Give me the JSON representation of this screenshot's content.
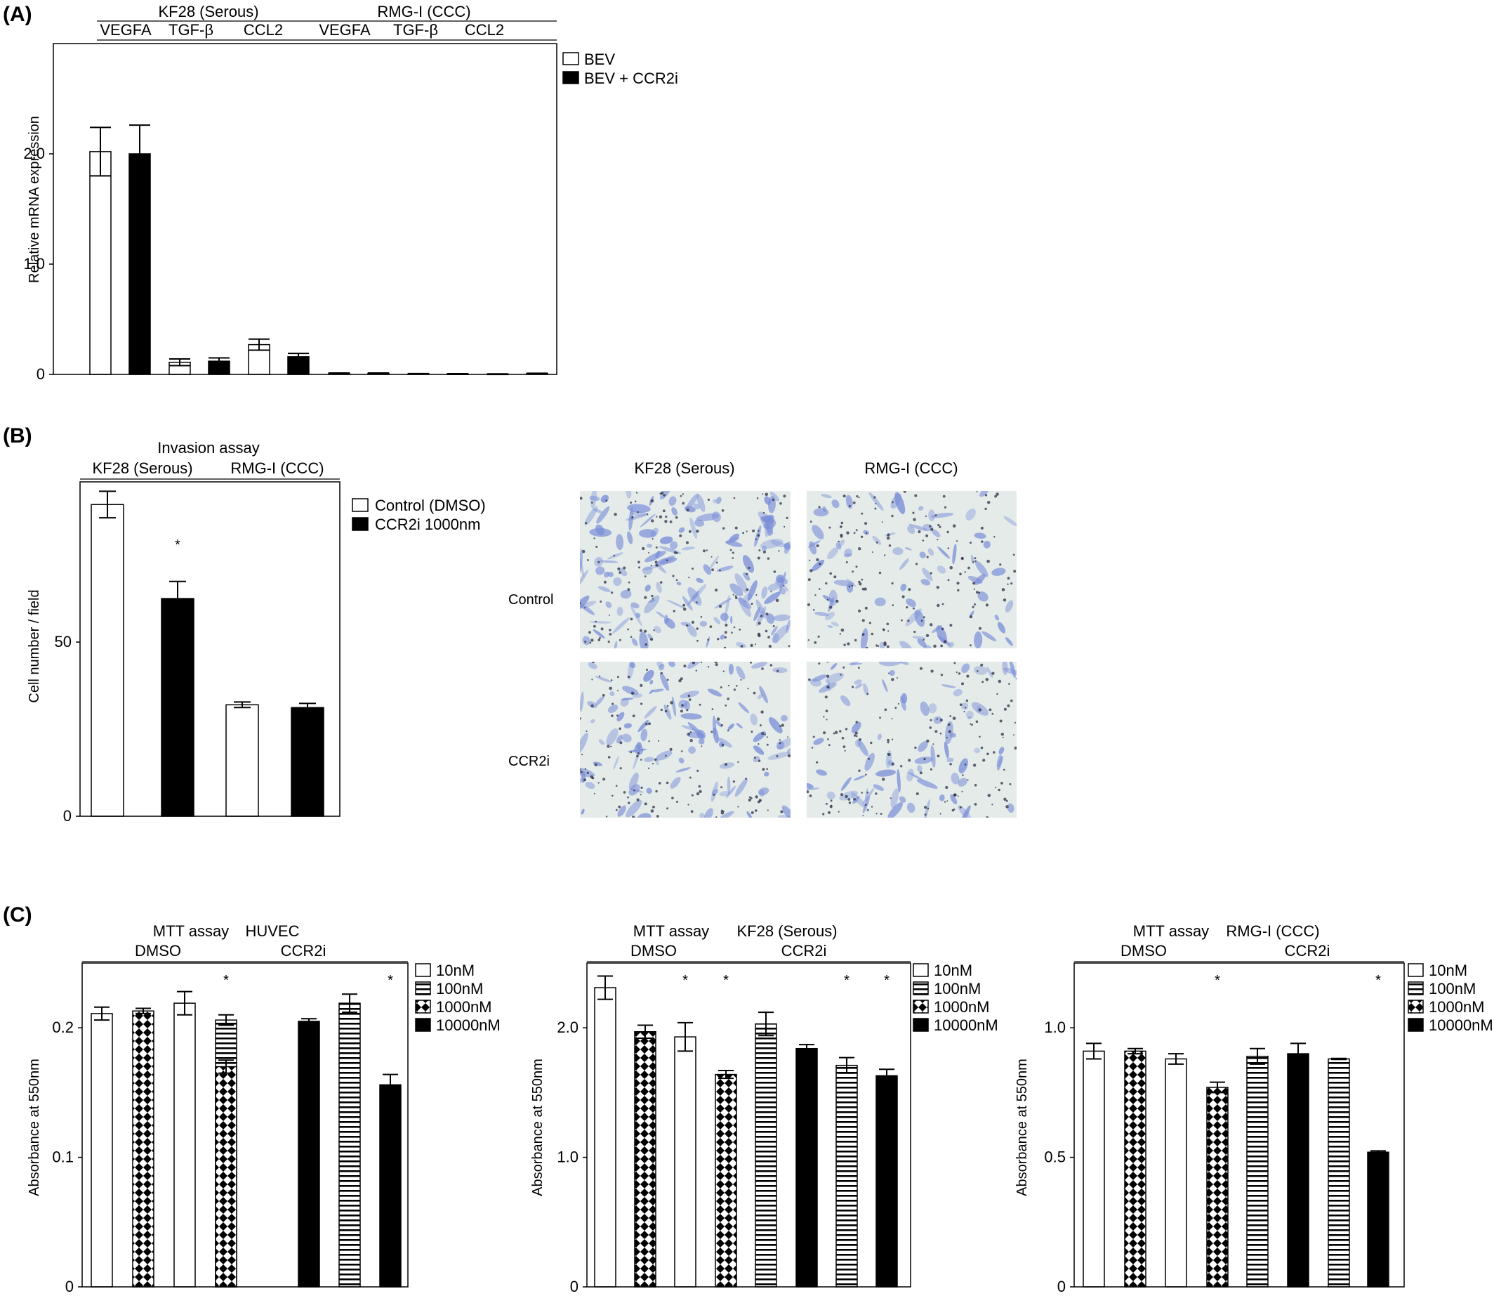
{
  "panels": {
    "A": {
      "letter": "(A)",
      "group_labels": [
        "KF28 (Serous)",
        "RMG-I (CCC)"
      ],
      "category_labels": [
        "VEGFA",
        "TGF-β",
        "CCL2",
        "VEGFA",
        "TGF-β",
        "CCL2"
      ],
      "ylabel": "Relative mRNA expression",
      "ticks": [
        "0",
        "1.0",
        "2.0"
      ],
      "legend": [
        "BEV",
        "BEV + CCR2i"
      ]
    },
    "B": {
      "letter": "(B)",
      "title": "Invasion assay",
      "group_labels": [
        "KF28 (Serous)",
        "RMG-I (CCC)"
      ],
      "ylabel": "Cell number / field",
      "ticks": [
        "0",
        "50"
      ],
      "legend": [
        "Control (DMSO)",
        "CCR2i 1000nm"
      ],
      "sig": "*",
      "image_grid": {
        "col_labels": [
          "KF28 (Serous)",
          "RMG-I (CCC)"
        ],
        "row_labels": [
          "Control",
          "CCR2i"
        ]
      }
    },
    "C": {
      "letter": "(C)",
      "subpanels": [
        {
          "title": "MTT assay",
          "cell": "HUVEC",
          "groups": [
            "DMSO",
            "CCR2i"
          ],
          "ylabel": "Absorbance at 550nm",
          "ticks": [
            "0",
            "0.1",
            "0.2"
          ],
          "legend": [
            "10nM",
            "100nM",
            "1000nM",
            "10000nM"
          ],
          "sig": "*"
        },
        {
          "title": "MTT assay",
          "cell": "KF28 (Serous)",
          "groups": [
            "DMSO",
            "CCR2i"
          ],
          "ylabel": "Absorbance at 550nm",
          "ticks": [
            "0",
            "1.0",
            "2.0"
          ],
          "legend": [
            "10nM",
            "100nM",
            "1000nM",
            "10000nM"
          ],
          "sig": "*"
        },
        {
          "title": "MTT assay",
          "cell": "RMG-I (CCC)",
          "groups": [
            "DMSO",
            "CCR2i"
          ],
          "ylabel": "Absorbance at 550nm",
          "ticks": [
            "0",
            "0.5",
            "1.0"
          ],
          "legend": [
            "10nM",
            "100nM",
            "1000nM",
            "10000nM"
          ],
          "sig": "*"
        }
      ]
    }
  },
  "chart_data": [
    {
      "type": "bar",
      "categories": [
        "VEGFA",
        "TGF-β",
        "CCL2",
        "VEGFA",
        "TGF-β",
        "CCL2"
      ],
      "groups": [
        "KF28 (Serous)",
        "KF28 (Serous)",
        "KF28 (Serous)",
        "RMG-I (CCC)",
        "RMG-I (CCC)",
        "RMG-I (CCC)"
      ],
      "series": [
        {
          "name": "BEV",
          "values": [
            2.02,
            0.11,
            0.27,
            0.01,
            0.005,
            0.003
          ],
          "errors": [
            0.22,
            0.03,
            0.05,
            0.003,
            0.002,
            0.002
          ]
        },
        {
          "name": "BEV + CCR2i",
          "values": [
            2.0,
            0.12,
            0.16,
            0.01,
            0.004,
            0.008
          ],
          "errors": [
            0.26,
            0.03,
            0.03,
            0.003,
            0.002,
            0.002
          ]
        }
      ],
      "ylabel": "Relative mRNA expression",
      "ylim": [
        0,
        3.0
      ],
      "legend_position": "right"
    },
    {
      "type": "bar",
      "title": "Invasion assay",
      "categories": [
        "KF28 (Serous)",
        "RMG-I (CCC)"
      ],
      "series": [
        {
          "name": "Control (DMSO)",
          "values": [
            89.5,
            32.0
          ],
          "errors": [
            3.8,
            0.8
          ]
        },
        {
          "name": "CCR2i 1000nm",
          "values": [
            62.5,
            31.2
          ],
          "errors": [
            4.9,
            1.2
          ]
        }
      ],
      "significant": [
        [
          false,
          false
        ],
        [
          true,
          false
        ]
      ],
      "ylabel": "Cell number / field",
      "ylim": [
        0,
        96
      ],
      "legend_position": "right"
    },
    {
      "type": "bar",
      "title": "MTT assay",
      "cell_line": "HUVEC",
      "categories": [
        "DMSO",
        "CCR2i"
      ],
      "series": [
        {
          "name": "10nM",
          "values": [
            0.211,
            0.219
          ],
          "errors": [
            0.005,
            0.009
          ]
        },
        {
          "name": "100nM",
          "values": [
            0.206,
            0.219
          ],
          "errors": [
            0.004,
            0.007
          ]
        },
        {
          "name": "1000nM",
          "values": [
            0.213,
            0.17
          ],
          "errors": [
            0.002,
            0.005
          ]
        },
        {
          "name": "10000nM",
          "values": [
            0.205,
            0.156
          ],
          "errors": [
            0.002,
            0.008
          ]
        }
      ],
      "significant": [
        [
          false,
          false
        ],
        [
          false,
          false
        ],
        [
          false,
          true
        ],
        [
          false,
          true
        ]
      ],
      "ylabel": "Absorbance at 550nm",
      "ylim": [
        0,
        0.25
      ],
      "legend_position": "right"
    },
    {
      "type": "bar",
      "title": "MTT assay",
      "cell_line": "KF28 (Serous)",
      "categories": [
        "DMSO",
        "CCR2i"
      ],
      "series": [
        {
          "name": "10nM",
          "values": [
            2.31,
            1.93
          ],
          "errors": [
            0.09,
            0.11
          ]
        },
        {
          "name": "100nM",
          "values": [
            2.03,
            1.71
          ],
          "errors": [
            0.09,
            0.06
          ]
        },
        {
          "name": "1000nM",
          "values": [
            1.97,
            1.64
          ],
          "errors": [
            0.05,
            0.03
          ]
        },
        {
          "name": "10000nM",
          "values": [
            1.84,
            1.63
          ],
          "errors": [
            0.03,
            0.05
          ]
        }
      ],
      "significant": [
        [
          false,
          true
        ],
        [
          false,
          true
        ],
        [
          false,
          true
        ],
        [
          false,
          true
        ]
      ],
      "ylabel": "Absorbance at 550nm",
      "ylim": [
        0,
        2.5
      ],
      "legend_position": "right"
    },
    {
      "type": "bar",
      "title": "MTT assay",
      "cell_line": "RMG-I (CCC)",
      "categories": [
        "DMSO",
        "CCR2i"
      ],
      "series": [
        {
          "name": "10nM",
          "values": [
            0.91,
            0.88
          ],
          "errors": [
            0.03,
            0.02
          ]
        },
        {
          "name": "100nM",
          "values": [
            0.89,
            0.88
          ],
          "errors": [
            0.03,
            0.002
          ]
        },
        {
          "name": "1000nM",
          "values": [
            0.91,
            0.77
          ],
          "errors": [
            0.01,
            0.02
          ]
        },
        {
          "name": "10000nM",
          "values": [
            0.9,
            0.52
          ],
          "errors": [
            0.04,
            0.005
          ]
        }
      ],
      "significant": [
        [
          false,
          false
        ],
        [
          false,
          false
        ],
        [
          false,
          true
        ],
        [
          false,
          true
        ]
      ],
      "ylabel": "Absorbance at 550nm",
      "ylim": [
        0,
        1.25
      ],
      "legend_position": "right"
    }
  ]
}
